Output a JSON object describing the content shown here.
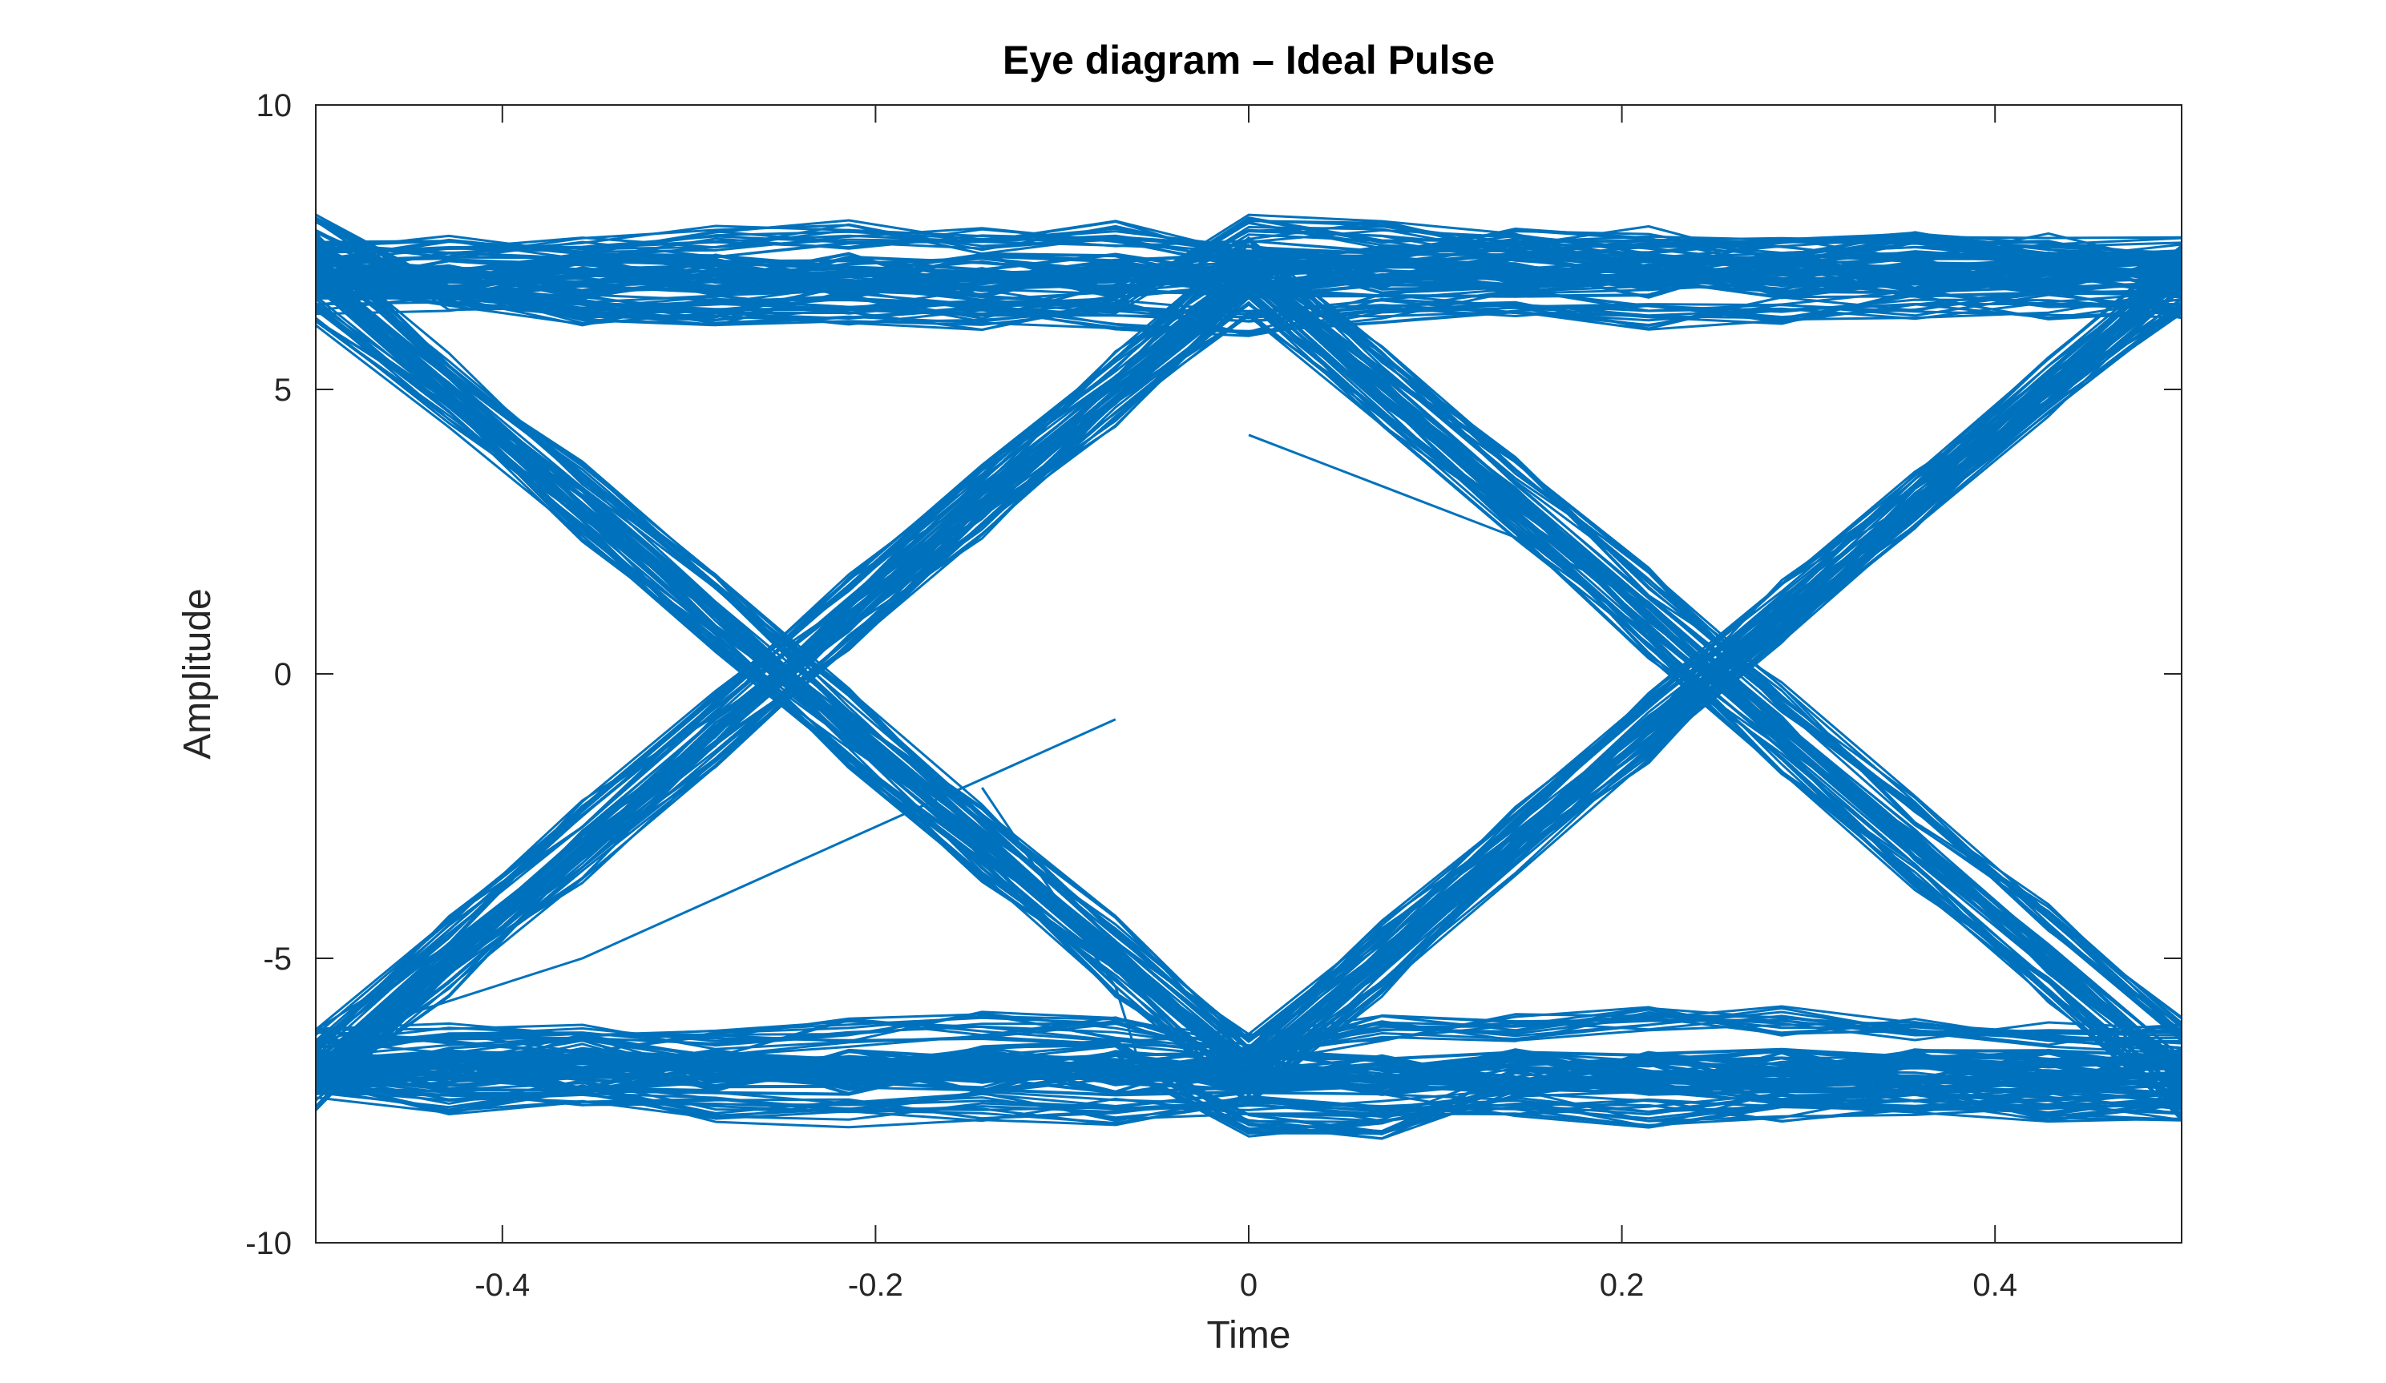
{
  "chart_data": {
    "type": "line",
    "title": "Eye diagram – Ideal Pulse",
    "xlabel": "Time",
    "ylabel": "Amplitude",
    "xlim": [
      -0.5,
      0.5
    ],
    "ylim": [
      -10,
      10
    ],
    "x_ticks": [
      "-0.4",
      "-0.2",
      "0",
      "0.2",
      "0.4"
    ],
    "x_tick_values": [
      -0.4,
      -0.2,
      0,
      0.2,
      0.4
    ],
    "y_ticks": [
      "10",
      "5",
      "0",
      "-5",
      "-10"
    ],
    "y_tick_values": [
      10,
      5,
      0,
      -5,
      -10
    ],
    "grid": false,
    "box": true,
    "line_color": "#0072BD",
    "x": [
      -0.5,
      -0.4286,
      -0.3571,
      -0.2857,
      -0.2143,
      -0.1429,
      -0.0714,
      0,
      0.0714,
      0.1429,
      0.2143,
      0.2857,
      0.3571,
      0.4286,
      0.5
    ],
    "series": [
      {
        "values": [
          7.4,
          7.5,
          7.5,
          7.6,
          7.7,
          7.6,
          7.7,
          7.4,
          7.3,
          7.6,
          7.6,
          7.4,
          7.5,
          7.5,
          7.4
        ]
      },
      {
        "values": [
          6.6,
          6.6,
          6.4,
          6.4,
          6.4,
          6.3,
          6.3,
          6.2,
          6.4,
          6.5,
          6.3,
          6.4,
          6.5,
          6.5,
          6.5
        ]
      },
      {
        "values": [
          7.8,
          6.6,
          6.4,
          6.4,
          6.6,
          6.5,
          6.6,
          7.8,
          7.7,
          7.5,
          7.3,
          7.4,
          7.5,
          7.3,
          7.2
        ]
      },
      {
        "values": [
          -7.3,
          -7.5,
          -7.4,
          -7.6,
          -7.7,
          -7.6,
          -7.7,
          -7.5,
          -7.6,
          -7.5,
          -7.7,
          -7.6,
          -7.5,
          -7.6,
          -7.6
        ]
      },
      {
        "values": [
          -6.5,
          -6.4,
          -6.4,
          -6.5,
          -6.3,
          -6.2,
          -6.3,
          -6.6,
          -6.2,
          -6.2,
          -6.1,
          -6.1,
          -6.3,
          -6.4,
          -6.4
        ]
      },
      {
        "values": [
          -7.0,
          -6.8,
          -6.6,
          -6.9,
          -7.0,
          -6.8,
          -6.7,
          -8.0,
          -7.9,
          -7.2,
          -7.1,
          -7.3,
          -7.4,
          -7.5,
          -7.4
        ]
      },
      {
        "values": [
          7.0,
          5.0,
          3.0,
          1.0,
          -1.0,
          -3.0,
          -5.0,
          -7.0,
          -5.0,
          -3.0,
          -1.0,
          1.0,
          3.0,
          5.0,
          7.0
        ]
      },
      {
        "values": [
          6.4,
          4.6,
          2.6,
          0.6,
          -1.4,
          -3.4,
          -5.4,
          -7.3,
          -5.4,
          -3.3,
          -1.3,
          0.8,
          2.8,
          4.8,
          6.6
        ]
      },
      {
        "values": [
          7.5,
          5.4,
          3.5,
          1.5,
          -0.5,
          -2.5,
          -4.5,
          -6.6,
          -4.6,
          -2.6,
          -0.6,
          1.4,
          3.3,
          5.3,
          7.3
        ]
      },
      {
        "values": [
          -7.0,
          -5.0,
          -3.0,
          -1.0,
          1.0,
          3.0,
          5.0,
          7.0,
          5.0,
          3.0,
          1.0,
          -1.0,
          -3.0,
          -5.0,
          -7.0
        ]
      },
      {
        "values": [
          -6.5,
          -4.5,
          -2.5,
          -0.5,
          1.5,
          3.4,
          5.4,
          7.4,
          5.5,
          3.6,
          1.6,
          -0.4,
          -2.4,
          -4.3,
          -6.3
        ]
      },
      {
        "values": [
          -7.4,
          -5.4,
          -3.4,
          -1.4,
          0.6,
          2.6,
          4.6,
          6.5,
          4.6,
          2.6,
          0.5,
          -1.5,
          -3.6,
          -5.6,
          -7.6
        ]
      },
      {
        "values": [
          6.9,
          6.8,
          7.1,
          7.0,
          6.9,
          7.0,
          6.9,
          7.0,
          5.0,
          3.0,
          1.0,
          -1.0,
          -3.0,
          -5.0,
          -7.0
        ]
      },
      {
        "values": [
          -7.0,
          -6.9,
          -7.1,
          -6.9,
          -7.0,
          -7.1,
          -6.9,
          -7.0,
          -5.0,
          -3.0,
          -1.0,
          1.0,
          3.0,
          5.0,
          7.0
        ]
      },
      {
        "values": [
          7.0,
          5.0,
          3.0,
          1.0,
          -1.0,
          -3.0,
          -5.0,
          -7.0,
          -7.1,
          -6.9,
          -7.0,
          -7.0,
          -6.9,
          -7.1,
          -7.0
        ]
      },
      {
        "values": [
          -7.0,
          -5.0,
          -3.0,
          -1.0,
          1.0,
          3.0,
          5.0,
          7.0,
          7.1,
          6.9,
          7.0,
          7.1,
          6.9,
          7.0,
          7.0
        ]
      }
    ],
    "stray_segments": [
      {
        "x": [
          -0.5,
          -0.3571,
          -0.2143,
          -0.0714
        ],
        "y": [
          -6.5,
          -5.0,
          -2.9,
          -0.8
        ]
      },
      {
        "x": [
          0,
          0.0714,
          0.1429,
          0.2
        ],
        "y": [
          4.2,
          3.3,
          2.4,
          1.5
        ]
      },
      {
        "x": [
          -0.1429,
          -0.0714,
          -0.0571
        ],
        "y": [
          -2.0,
          -5.5,
          -7.0
        ]
      }
    ]
  }
}
